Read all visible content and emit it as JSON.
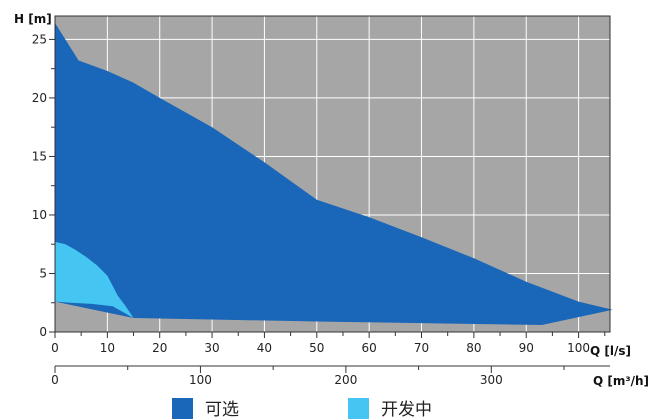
{
  "chart_data": {
    "type": "area",
    "background_color": "#a6a6a6",
    "grid": true,
    "legend_position": "bottom",
    "x_axis": {
      "label": "Q [l/s]",
      "range": [
        0,
        106
      ],
      "ticks": [
        0,
        10,
        20,
        30,
        40,
        50,
        60,
        70,
        80,
        90,
        100
      ]
    },
    "x2_axis": {
      "label": "Q [m³/h]",
      "range": [
        0,
        381.6
      ],
      "ticks": [
        0,
        100,
        200,
        300
      ]
    },
    "y_axis": {
      "label": "H [m]",
      "range": [
        0,
        27
      ],
      "ticks": [
        0,
        5,
        10,
        15,
        20,
        25
      ]
    },
    "series": [
      {
        "name": "可选",
        "color": "#1a66b8",
        "points": [
          [
            0,
            26.4
          ],
          [
            4.5,
            23.2
          ],
          [
            10,
            22.3
          ],
          [
            15,
            21.3
          ],
          [
            20,
            20.0
          ],
          [
            30,
            17.5
          ],
          [
            40,
            14.5
          ],
          [
            50,
            11.3
          ],
          [
            60,
            9.8
          ],
          [
            70,
            8.1
          ],
          [
            80,
            6.3
          ],
          [
            90,
            4.3
          ],
          [
            100,
            2.6
          ],
          [
            106.5,
            1.9
          ],
          [
            93,
            0.6
          ],
          [
            50,
            0.9
          ],
          [
            15,
            1.2
          ],
          [
            0,
            2.6
          ]
        ]
      },
      {
        "name": "开发中",
        "color": "#45c6f2",
        "points": [
          [
            0,
            7.7
          ],
          [
            2,
            7.5
          ],
          [
            4,
            7.0
          ],
          [
            6,
            6.4
          ],
          [
            8,
            5.7
          ],
          [
            10,
            4.8
          ],
          [
            12,
            3.1
          ],
          [
            13.5,
            2.2
          ],
          [
            15,
            1.2
          ],
          [
            11,
            2.2
          ],
          [
            7,
            2.4
          ],
          [
            3,
            2.5
          ],
          [
            0,
            2.6
          ]
        ]
      }
    ]
  }
}
